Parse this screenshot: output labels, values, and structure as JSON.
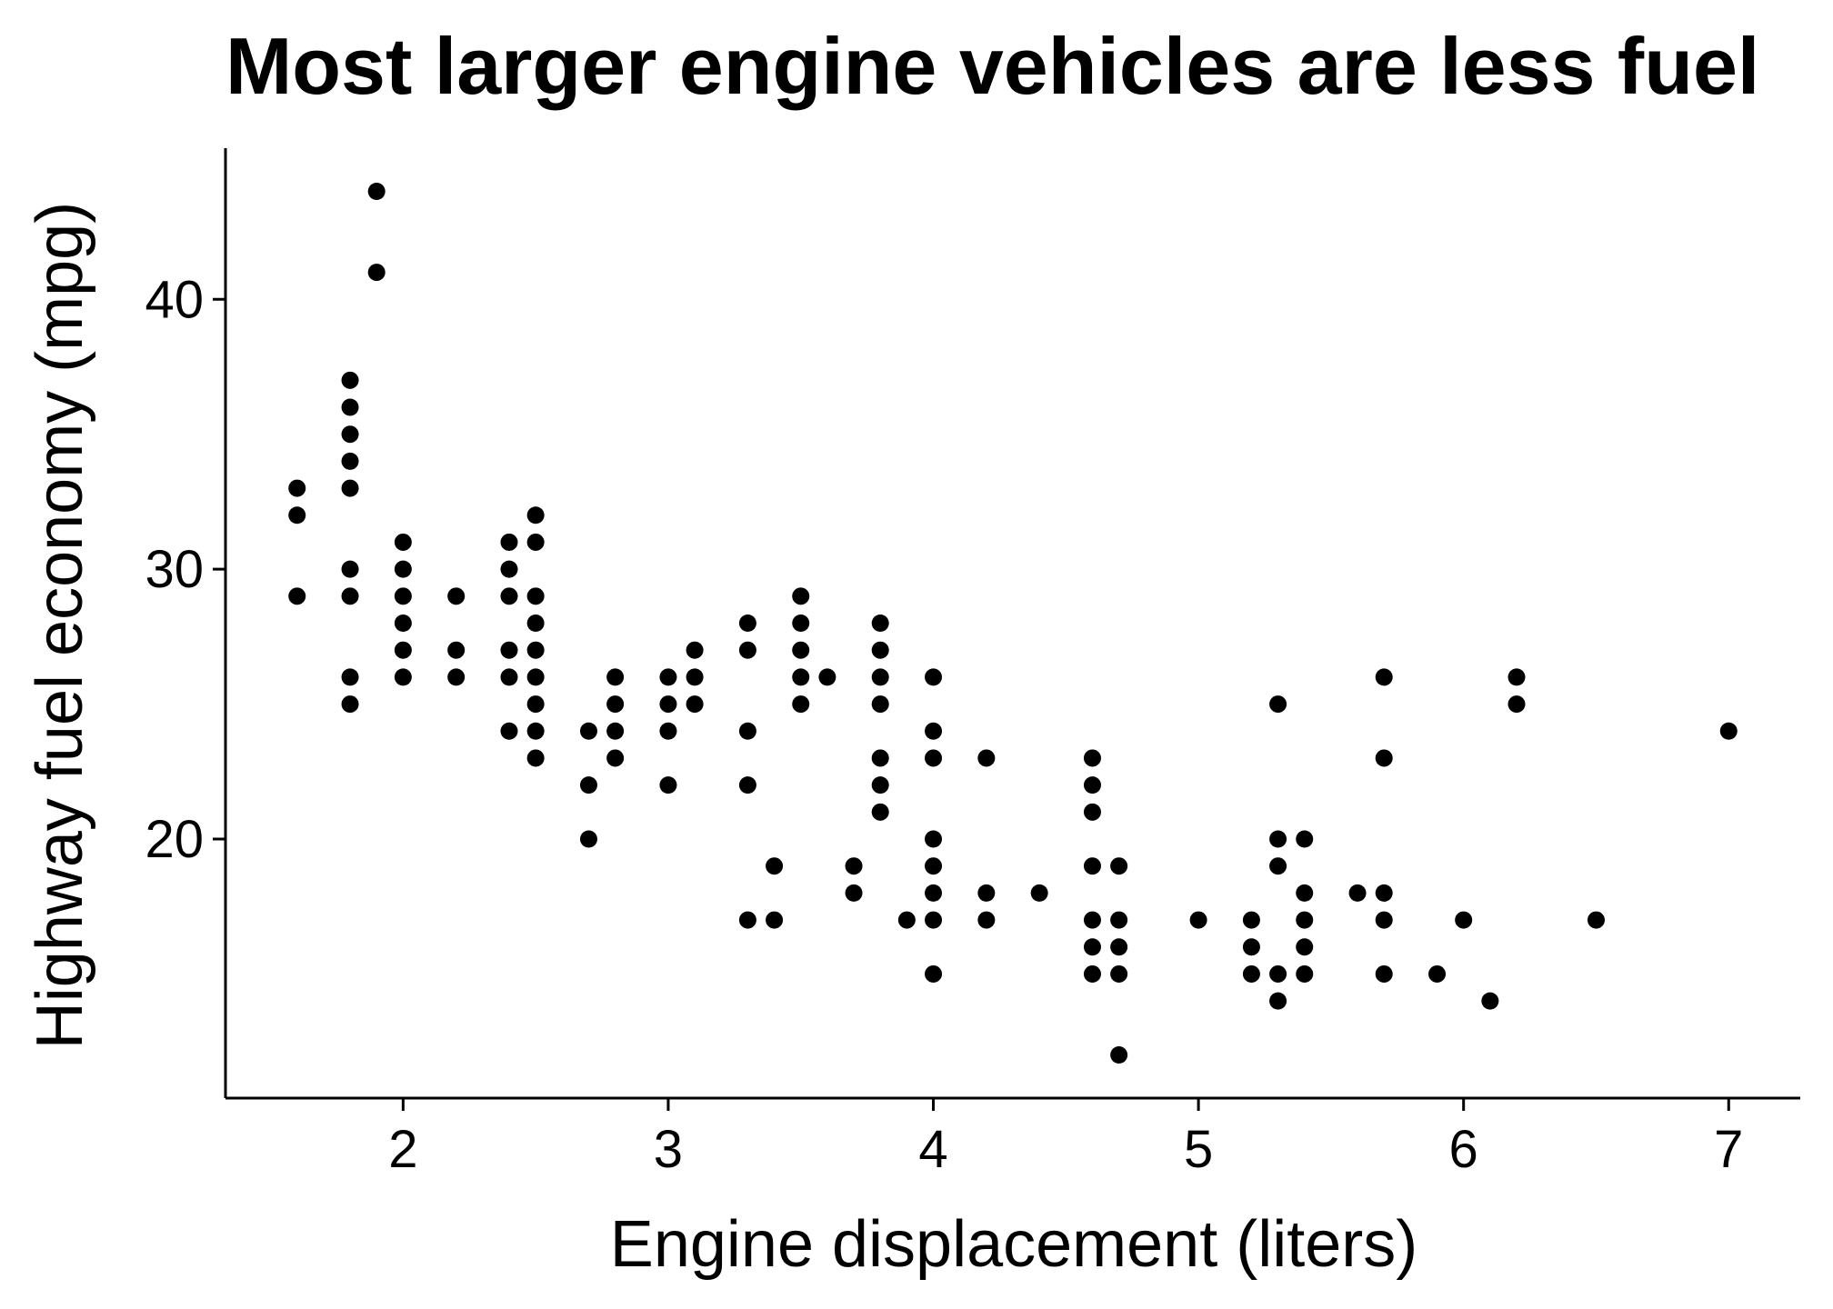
{
  "chart_data": {
    "type": "scatter",
    "title": "Most larger engine vehicles are less fuel",
    "xlabel": "Engine displacement (liters)",
    "ylabel": "Highway fuel economy (mpg)",
    "xlim": [
      1.33,
      7.27
    ],
    "ylim": [
      10.4,
      45.6
    ],
    "xticks": [
      2,
      3,
      4,
      5,
      6,
      7
    ],
    "yticks": [
      20,
      30,
      40
    ],
    "grid": false,
    "legend": "none",
    "point_color": "#000000",
    "series": [
      {
        "points": [
          [
            1.6,
            33
          ],
          [
            1.6,
            32
          ],
          [
            1.6,
            29
          ],
          [
            1.8,
            37
          ],
          [
            1.8,
            36
          ],
          [
            1.8,
            35
          ],
          [
            1.8,
            34
          ],
          [
            1.8,
            33
          ],
          [
            1.8,
            30
          ],
          [
            1.8,
            29
          ],
          [
            1.8,
            26
          ],
          [
            1.8,
            25
          ],
          [
            1.9,
            44
          ],
          [
            1.9,
            41
          ],
          [
            2.0,
            31
          ],
          [
            2.0,
            30
          ],
          [
            2.0,
            29
          ],
          [
            2.0,
            28
          ],
          [
            2.0,
            27
          ],
          [
            2.0,
            26
          ],
          [
            2.2,
            29
          ],
          [
            2.2,
            27
          ],
          [
            2.2,
            26
          ],
          [
            2.4,
            31
          ],
          [
            2.4,
            30
          ],
          [
            2.4,
            29
          ],
          [
            2.4,
            27
          ],
          [
            2.4,
            26
          ],
          [
            2.4,
            24
          ],
          [
            2.5,
            32
          ],
          [
            2.5,
            31
          ],
          [
            2.5,
            29
          ],
          [
            2.5,
            28
          ],
          [
            2.5,
            27
          ],
          [
            2.5,
            26
          ],
          [
            2.5,
            25
          ],
          [
            2.5,
            24
          ],
          [
            2.5,
            23
          ],
          [
            2.7,
            24
          ],
          [
            2.7,
            22
          ],
          [
            2.7,
            20
          ],
          [
            2.8,
            26
          ],
          [
            2.8,
            25
          ],
          [
            2.8,
            24
          ],
          [
            2.8,
            23
          ],
          [
            3.0,
            26
          ],
          [
            3.0,
            25
          ],
          [
            3.0,
            24
          ],
          [
            3.0,
            22
          ],
          [
            3.1,
            27
          ],
          [
            3.1,
            26
          ],
          [
            3.1,
            25
          ],
          [
            3.3,
            28
          ],
          [
            3.3,
            27
          ],
          [
            3.3,
            24
          ],
          [
            3.3,
            22
          ],
          [
            3.3,
            17
          ],
          [
            3.4,
            19
          ],
          [
            3.4,
            17
          ],
          [
            3.5,
            29
          ],
          [
            3.5,
            28
          ],
          [
            3.5,
            27
          ],
          [
            3.5,
            26
          ],
          [
            3.5,
            25
          ],
          [
            3.6,
            26
          ],
          [
            3.7,
            19
          ],
          [
            3.7,
            18
          ],
          [
            3.8,
            28
          ],
          [
            3.8,
            27
          ],
          [
            3.8,
            26
          ],
          [
            3.8,
            25
          ],
          [
            3.8,
            23
          ],
          [
            3.8,
            22
          ],
          [
            3.8,
            21
          ],
          [
            3.9,
            17
          ],
          [
            4.0,
            26
          ],
          [
            4.0,
            24
          ],
          [
            4.0,
            23
          ],
          [
            4.0,
            20
          ],
          [
            4.0,
            19
          ],
          [
            4.0,
            18
          ],
          [
            4.0,
            17
          ],
          [
            4.0,
            15
          ],
          [
            4.2,
            23
          ],
          [
            4.2,
            18
          ],
          [
            4.2,
            17
          ],
          [
            4.4,
            18
          ],
          [
            4.6,
            23
          ],
          [
            4.6,
            22
          ],
          [
            4.6,
            21
          ],
          [
            4.6,
            19
          ],
          [
            4.6,
            17
          ],
          [
            4.6,
            16
          ],
          [
            4.6,
            15
          ],
          [
            4.7,
            19
          ],
          [
            4.7,
            17
          ],
          [
            4.7,
            16
          ],
          [
            4.7,
            15
          ],
          [
            4.7,
            12
          ],
          [
            5.0,
            17
          ],
          [
            5.2,
            17
          ],
          [
            5.2,
            16
          ],
          [
            5.2,
            15
          ],
          [
            5.3,
            25
          ],
          [
            5.3,
            20
          ],
          [
            5.3,
            19
          ],
          [
            5.3,
            15
          ],
          [
            5.3,
            14
          ],
          [
            5.4,
            20
          ],
          [
            5.4,
            18
          ],
          [
            5.4,
            17
          ],
          [
            5.4,
            16
          ],
          [
            5.4,
            15
          ],
          [
            5.6,
            18
          ],
          [
            5.7,
            26
          ],
          [
            5.7,
            23
          ],
          [
            5.7,
            18
          ],
          [
            5.7,
            17
          ],
          [
            5.7,
            15
          ],
          [
            5.9,
            15
          ],
          [
            6.0,
            17
          ],
          [
            6.1,
            14
          ],
          [
            6.2,
            26
          ],
          [
            6.2,
            25
          ],
          [
            6.5,
            17
          ],
          [
            7.0,
            24
          ]
        ]
      }
    ]
  }
}
